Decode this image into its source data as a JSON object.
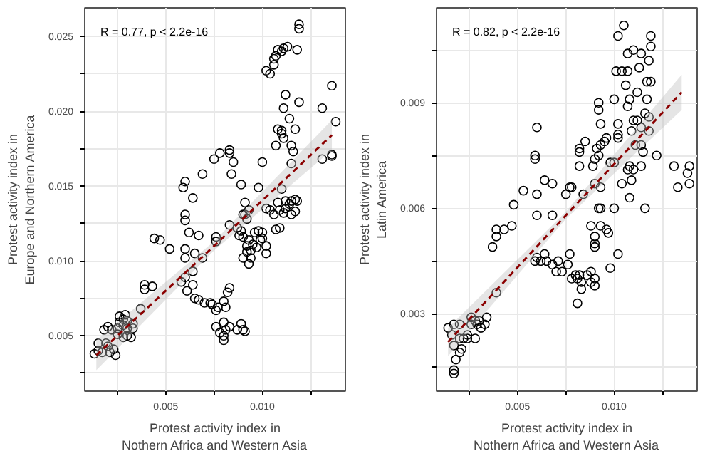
{
  "chart_data": [
    {
      "type": "scatter",
      "xlabel": "Protest activity index in\nNothern Africa and Western Asia",
      "ylabel": "Protest activity index in\nEurope and Northern America",
      "annotations": [
        "R = 0.77, p < 2.2e-16"
      ],
      "grid": true,
      "xlim": [
        0.0008,
        0.0143
      ],
      "ylim": [
        0.0013,
        0.0269
      ],
      "xticks": [
        {
          "value": 0.0025,
          "label": null
        },
        {
          "value": 0.005,
          "label": "0.005"
        },
        {
          "value": 0.0075,
          "label": null
        },
        {
          "value": 0.01,
          "label": "0.010"
        },
        {
          "value": 0.0125,
          "label": null
        }
      ],
      "yticks": [
        {
          "value": 0.0025,
          "label": null
        },
        {
          "value": 0.005,
          "label": "0.005"
        },
        {
          "value": 0.0075,
          "label": null
        },
        {
          "value": 0.01,
          "label": "0.010"
        },
        {
          "value": 0.0125,
          "label": null
        },
        {
          "value": 0.015,
          "label": "0.015"
        },
        {
          "value": 0.0175,
          "label": null
        },
        {
          "value": 0.02,
          "label": "0.020"
        },
        {
          "value": 0.0225,
          "label": null
        },
        {
          "value": 0.025,
          "label": "0.025"
        }
      ],
      "series": [
        {
          "marker": "circle",
          "color": "#000000",
          "x": [
            0.0119,
            0.0119,
            0.0113,
            0.0111,
            0.0108,
            0.011,
            0.0118,
            0.0107,
            0.0106,
            0.0106,
            0.0102,
            0.0104,
            0.0136,
            0.0112,
            0.0119,
            0.0111,
            0.0131,
            0.0114,
            0.0138,
            0.0108,
            0.011,
            0.0117,
            0.011,
            0.0111,
            0.0107,
            0.0115,
            0.0116,
            0.0131,
            0.0136,
            0.0136,
            0.0083,
            0.0083,
            0.0078,
            0.0075,
            0.0085,
            0.01,
            0.0115,
            0.0084,
            0.0069,
            0.006,
            0.0059,
            0.0089,
            0.0098,
            0.011,
            0.0064,
            0.0091,
            0.0108,
            0.0112,
            0.0115,
            0.0117,
            0.0118,
            0.0114,
            0.0102,
            0.0104,
            0.0109,
            0.0112,
            0.0117,
            0.006,
            0.0093,
            0.009,
            0.006,
            0.0106,
            0.0111,
            0.0115,
            0.0109,
            0.0107,
            0.0044,
            0.0047,
            0.0052,
            0.0062,
            0.0067,
            0.0076,
            0.0076,
            0.0083,
            0.0087,
            0.0091,
            0.0092,
            0.0089,
            0.009,
            0.0088,
            0.0096,
            0.0098,
            0.01,
            0.01,
            0.0099,
            0.0093,
            0.0095,
            0.0092,
            0.0094,
            0.0092,
            0.0094,
            0.009,
            0.0093,
            0.0097,
            0.0102,
            0.0102,
            0.006,
            0.0065,
            0.006,
            0.0069,
            0.0064,
            0.006,
            0.0058,
            0.0061,
            0.0064,
            0.0065,
            0.0067,
            0.007,
            0.0073,
            0.0074,
            0.0076,
            0.0077,
            0.008,
            0.0081,
            0.0082,
            0.0083,
            0.0076,
            0.0078,
            0.008,
            0.008,
            0.0081,
            0.0083,
            0.0087,
            0.0089,
            0.009,
            0.0091,
            0.008,
            0.0039,
            0.0039,
            0.0043,
            0.0037,
            0.0029,
            0.0026,
            0.0028,
            0.003,
            0.0026,
            0.0028,
            0.0025,
            0.003,
            0.0033,
            0.0033,
            0.0025,
            0.0028,
            0.003,
            0.0032,
            0.002,
            0.0018,
            0.0022,
            0.0015,
            0.0019,
            0.002,
            0.0023,
            0.0015,
            0.0017,
            0.0021,
            0.0024,
            0.0013
          ],
          "values": [
            0.0258,
            0.0255,
            0.0243,
            0.0242,
            0.0241,
            0.024,
            0.0241,
            0.0237,
            0.0235,
            0.0231,
            0.0227,
            0.0225,
            0.0217,
            0.0211,
            0.0206,
            0.0202,
            0.0202,
            0.0195,
            0.0193,
            0.0188,
            0.0187,
            0.0188,
            0.0185,
            0.0182,
            0.0177,
            0.0177,
            0.0173,
            0.0168,
            0.017,
            0.0171,
            0.0174,
            0.0172,
            0.0172,
            0.0168,
            0.0166,
            0.0166,
            0.0165,
            0.0158,
            0.0158,
            0.0153,
            0.0149,
            0.0151,
            0.0149,
            0.0148,
            0.0142,
            0.0139,
            0.0139,
            0.014,
            0.014,
            0.0141,
            0.014,
            0.0138,
            0.0135,
            0.0134,
            0.0134,
            0.0135,
            0.0133,
            0.0131,
            0.0134,
            0.0131,
            0.0127,
            0.0131,
            0.0132,
            0.0131,
            0.0122,
            0.0121,
            0.0115,
            0.0114,
            0.0108,
            0.0119,
            0.0117,
            0.0116,
            0.0113,
            0.0124,
            0.0122,
            0.0131,
            0.0128,
            0.012,
            0.0116,
            0.0117,
            0.0119,
            0.012,
            0.0119,
            0.0115,
            0.0114,
            0.0114,
            0.0111,
            0.011,
            0.0107,
            0.0106,
            0.0102,
            0.0102,
            0.0098,
            0.0109,
            0.011,
            0.0105,
            0.0108,
            0.0105,
            0.0102,
            0.0102,
            0.0093,
            0.0089,
            0.0086,
            0.008,
            0.0084,
            0.0075,
            0.0074,
            0.0072,
            0.0072,
            0.0071,
            0.0067,
            0.0069,
            0.0073,
            0.0069,
            0.0079,
            0.0082,
            0.0056,
            0.0052,
            0.005,
            0.0047,
            0.0054,
            0.0056,
            0.0054,
            0.0058,
            0.0054,
            0.0053,
            0.0059,
            0.0084,
            0.0081,
            0.0083,
            0.0068,
            0.0064,
            0.0063,
            0.0061,
            0.006,
            0.0059,
            0.0057,
            0.0055,
            0.0055,
            0.0058,
            0.0055,
            0.0051,
            0.0049,
            0.005,
            0.0049,
            0.0056,
            0.0054,
            0.0054,
            0.0045,
            0.0045,
            0.0043,
            0.0041,
            0.004,
            0.0039,
            0.0039,
            0.0037,
            0.0038
          ]
        },
        {
          "type": "line",
          "color": "#8b0000",
          "line_style": "dashed",
          "x": [
            0.0014,
            0.0075,
            0.0136
          ],
          "values": [
            0.0037,
            0.011,
            0.0184
          ],
          "lower": [
            0.0027,
            0.0107,
            0.0174
          ],
          "upper": [
            0.0047,
            0.0113,
            0.0194
          ]
        }
      ]
    },
    {
      "type": "scatter",
      "xlabel": "Protest activity index in\nNothern Africa and Western Asia",
      "ylabel": "Protest activity index in\nLatin America",
      "annotations": [
        "R = 0.82, p < 2.2e-16"
      ],
      "grid": true,
      "xlim": [
        0.0008,
        0.0143
      ],
      "ylim": [
        0.0008,
        0.0117
      ],
      "xticks": [
        {
          "value": 0.0025,
          "label": null
        },
        {
          "value": 0.005,
          "label": "0.005"
        },
        {
          "value": 0.0075,
          "label": null
        },
        {
          "value": 0.01,
          "label": "0.010"
        },
        {
          "value": 0.0125,
          "label": null
        }
      ],
      "yticks": [
        {
          "value": 0.0015,
          "label": null
        },
        {
          "value": 0.003,
          "label": "0.003"
        },
        {
          "value": 0.0045,
          "label": null
        },
        {
          "value": 0.006,
          "label": "0.006"
        },
        {
          "value": 0.0075,
          "label": null
        },
        {
          "value": 0.009,
          "label": "0.009"
        },
        {
          "value": 0.0105,
          "label": null
        }
      ],
      "series": [
        {
          "marker": "circle",
          "color": "#000000",
          "x": [
            0.0105,
            0.0102,
            0.0119,
            0.0119,
            0.011,
            0.0107,
            0.0114,
            0.0118,
            0.0113,
            0.0101,
            0.0104,
            0.0107,
            0.0106,
            0.0117,
            0.0119,
            0.0112,
            0.0108,
            0.0107,
            0.0117,
            0.01,
            0.0092,
            0.0092,
            0.0093,
            0.0116,
            0.0118,
            0.011,
            0.0112,
            0.0114,
            0.0109,
            0.0118,
            0.0102,
            0.0102,
            0.0102,
            0.0096,
            0.0095,
            0.0093,
            0.0091,
            0.0092,
            0.0085,
            0.0082,
            0.0082,
            0.0082,
            0.006,
            0.0059,
            0.0059,
            0.0111,
            0.0114,
            0.0115,
            0.0122,
            0.009,
            0.0089,
            0.01,
            0.0098,
            0.0108,
            0.011,
            0.0107,
            0.0114,
            0.0131,
            0.0139,
            0.0138,
            0.0139,
            0.0133,
            0.0064,
            0.0068,
            0.0053,
            0.0075,
            0.0077,
            0.0078,
            0.0084,
            0.009,
            0.0093,
            0.0104,
            0.0109,
            0.0108,
            0.006,
            0.0048,
            0.006,
            0.0068,
            0.0092,
            0.0093,
            0.01,
            0.0116,
            0.0088,
            0.0093,
            0.0096,
            0.0097,
            0.009,
            0.009,
            0.009,
            0.0039,
            0.0039,
            0.0043,
            0.0047,
            0.0037,
            0.0064,
            0.006,
            0.0062,
            0.0065,
            0.0068,
            0.0059,
            0.0077,
            0.0071,
            0.0076,
            0.007,
            0.0073,
            0.008,
            0.0082,
            0.0078,
            0.0081,
            0.0083,
            0.0083,
            0.0081,
            0.0086,
            0.0088,
            0.009,
            0.0088,
            0.009,
            0.0098,
            0.0102,
            0.0039,
            0.0034,
            0.0026,
            0.0028,
            0.003,
            0.0026,
            0.0029,
            0.0031,
            0.0024,
            0.0028,
            0.0022,
            0.0033,
            0.0017,
            0.002,
            0.0014,
            0.0016,
            0.002,
            0.0024,
            0.0017,
            0.0021,
            0.002,
            0.0018,
            0.0017,
            0.0017
          ],
          "values": [
            0.0112,
            0.0109,
            0.0109,
            0.0106,
            0.0105,
            0.0104,
            0.0104,
            0.0102,
            0.01,
            0.0099,
            0.0099,
            0.0099,
            0.0095,
            0.0096,
            0.0096,
            0.0093,
            0.0091,
            0.0089,
            0.0091,
            0.0091,
            0.009,
            0.0088,
            0.0084,
            0.0087,
            0.0086,
            0.0085,
            0.0085,
            0.0083,
            0.0082,
            0.0082,
            0.0084,
            0.0081,
            0.008,
            0.008,
            0.0079,
            0.0078,
            0.0077,
            0.0075,
            0.0079,
            0.0077,
            0.0076,
            0.0072,
            0.0083,
            0.0075,
            0.0074,
            0.0078,
            0.0078,
            0.0076,
            0.0075,
            0.0074,
            0.0072,
            0.0073,
            0.0073,
            0.0072,
            0.0071,
            0.0071,
            0.0072,
            0.0072,
            0.0072,
            0.007,
            0.0067,
            0.0066,
            0.0068,
            0.0067,
            0.0065,
            0.0064,
            0.0066,
            0.0066,
            0.0064,
            0.0067,
            0.0066,
            0.0067,
            0.0068,
            0.0063,
            0.0064,
            0.0061,
            0.0058,
            0.0058,
            0.006,
            0.006,
            0.006,
            0.006,
            0.0055,
            0.0055,
            0.0054,
            0.0053,
            0.0052,
            0.005,
            0.0049,
            0.0054,
            0.0052,
            0.0054,
            0.0055,
            0.0049,
            0.0047,
            0.0046,
            0.0045,
            0.0045,
            0.0044,
            0.0045,
            0.0047,
            0.0045,
            0.0044,
            0.0042,
            0.0042,
            0.0041,
            0.0041,
            0.004,
            0.004,
            0.0039,
            0.0037,
            0.0033,
            0.0041,
            0.0042,
            0.004,
            0.0039,
            0.0038,
            0.0043,
            0.0047,
            0.0036,
            0.0029,
            0.0029,
            0.0028,
            0.0028,
            0.0027,
            0.0027,
            0.0026,
            0.0024,
            0.0023,
            0.0023,
            0.0027,
            0.0027,
            0.0027,
            0.0026,
            0.0024,
            0.0023,
            0.0023,
            0.0021,
            0.002,
            0.0019,
            0.0017,
            0.0014,
            0.0013
          ]
        },
        {
          "type": "line",
          "color": "#8b0000",
          "line_style": "dashed",
          "x": [
            0.0014,
            0.0075,
            0.0135
          ],
          "values": [
            0.0022,
            0.0058,
            0.0093
          ],
          "lower": [
            0.0018,
            0.0057,
            0.0088
          ],
          "upper": [
            0.0026,
            0.0059,
            0.0098
          ]
        }
      ]
    }
  ]
}
